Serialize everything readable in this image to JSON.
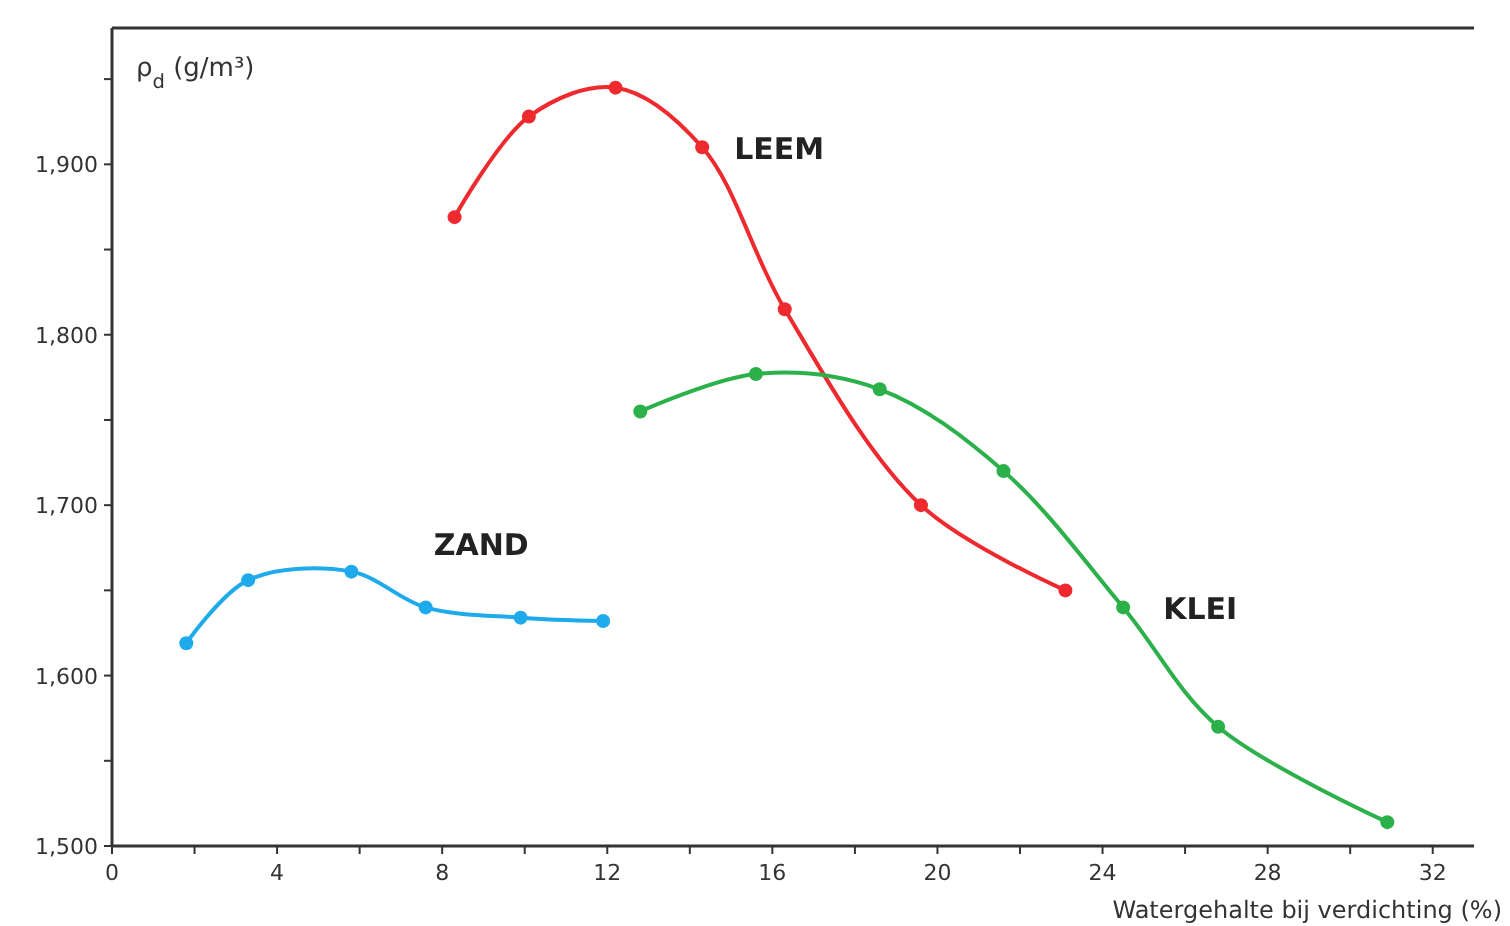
{
  "chart_data": {
    "type": "line",
    "ylabel": "ρ$_{d}$ (g/m³)",
    "xlabel": "Watergehalte bij verdichting (%)",
    "marker": "circle",
    "line_style": "solid",
    "grid": false,
    "xlim": [
      0,
      33
    ],
    "xticks": [
      0,
      {
        "value": 2,
        "label": null
      },
      4,
      {
        "value": 6,
        "label": null
      },
      8,
      {
        "value": 10,
        "label": null
      },
      12,
      {
        "value": 14,
        "label": null
      },
      16,
      {
        "value": 18,
        "label": null
      },
      20,
      {
        "value": 22,
        "label": null
      },
      24,
      {
        "value": 26,
        "label": null
      },
      28,
      {
        "value": 30,
        "label": null
      },
      32
    ],
    "ylim": [
      1500,
      1980
    ],
    "yticks": [
      {
        "value": 1500,
        "label": "1,500"
      },
      {
        "value": 1550,
        "label": null
      },
      {
        "value": 1600,
        "label": "1,600"
      },
      {
        "value": 1650,
        "label": null
      },
      {
        "value": 1700,
        "label": "1,700"
      },
      {
        "value": 1750,
        "label": null
      },
      {
        "value": 1800,
        "label": "1,800"
      },
      {
        "value": 1850,
        "label": null
      },
      {
        "value": 1900,
        "label": "1,900"
      },
      {
        "value": 1950,
        "label": null
      }
    ],
    "series": [
      {
        "name": "LEEM",
        "color": "#ee2a2e",
        "x": [
          8.3,
          10.1,
          12.2,
          14.3,
          16.3,
          19.6,
          23.1
        ],
        "values": [
          1869,
          1928,
          1945,
          1910,
          1815,
          1700,
          1650
        ]
      },
      {
        "name": "ZAND",
        "color": "#1eaaeb",
        "x": [
          1.8,
          3.3,
          5.8,
          7.6,
          9.9,
          11.9
        ],
        "values": [
          1619,
          1656,
          1661,
          1640,
          1634,
          1632
        ]
      },
      {
        "name": "KLEI",
        "color": "#2bb04a",
        "x": [
          12.8,
          15.6,
          18.6,
          21.6,
          24.5,
          26.8,
          30.9
        ],
        "values": [
          1755,
          1777,
          1768,
          1720,
          1640,
          1570,
          1514
        ]
      }
    ]
  }
}
